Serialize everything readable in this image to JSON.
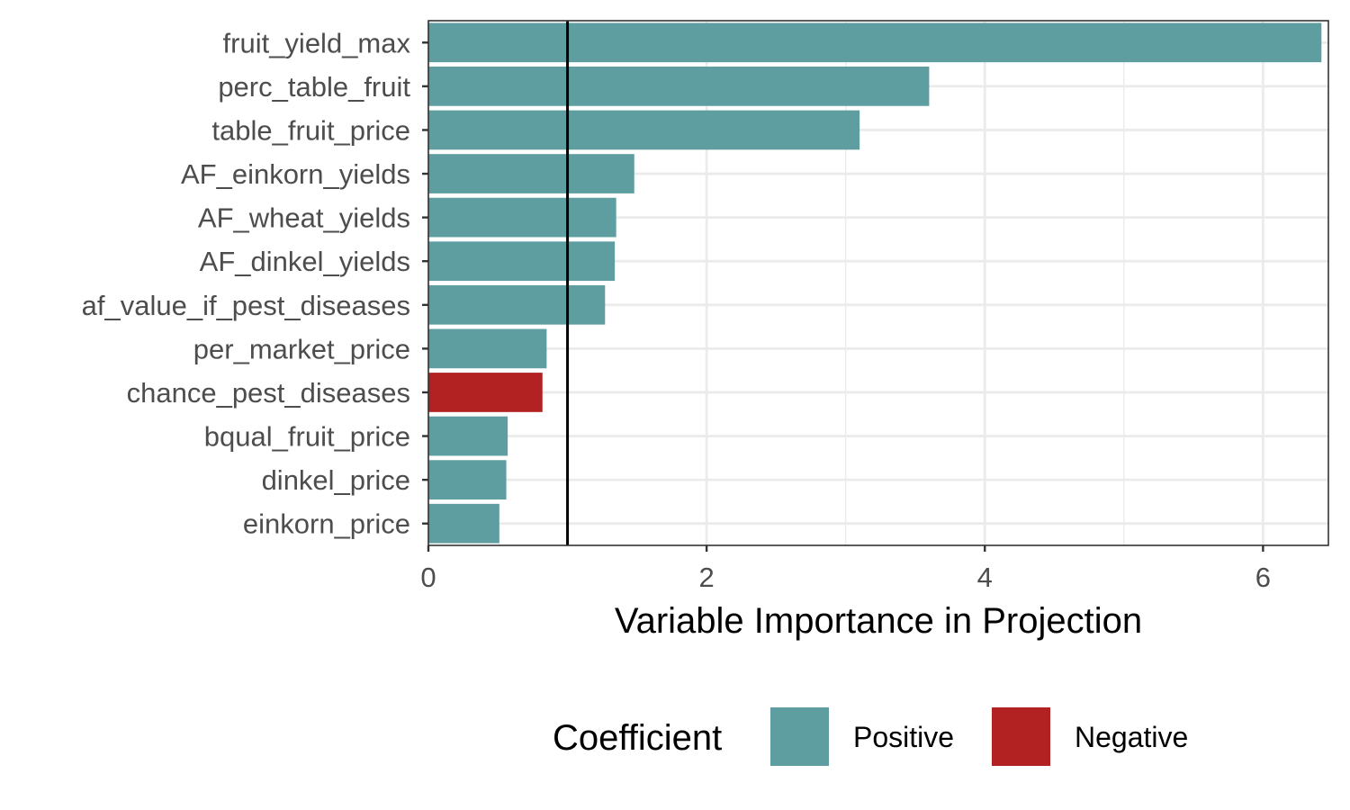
{
  "chart_data": {
    "type": "bar",
    "orientation": "horizontal",
    "categories": [
      "fruit_yield_max",
      "perc_table_fruit",
      "table_fruit_price",
      "AF_einkorn_yields",
      "AF_wheat_yields",
      "AF_dinkel_yields",
      "af_value_if_pest_diseases",
      "per_market_price",
      "chance_pest_diseases",
      "bqual_fruit_price",
      "dinkel_price",
      "einkorn_price"
    ],
    "values": [
      6.42,
      3.6,
      3.1,
      1.48,
      1.35,
      1.34,
      1.27,
      0.85,
      0.82,
      0.57,
      0.56,
      0.51
    ],
    "coefficient": [
      "Positive",
      "Positive",
      "Positive",
      "Positive",
      "Positive",
      "Positive",
      "Positive",
      "Positive",
      "Negative",
      "Positive",
      "Positive",
      "Positive"
    ],
    "reference_line": 1,
    "xlabel": "Variable Importance in Projection",
    "ylabel": "",
    "xlim": [
      0,
      6.47
    ],
    "x_ticks": [
      "0",
      "2",
      "4",
      "6"
    ],
    "x_tick_values": [
      0,
      2,
      4,
      6
    ],
    "grid": true,
    "legend": {
      "title": "Coefficient",
      "position": "bottom",
      "entries": [
        {
          "label": "Positive",
          "color": "#5f9ea0"
        },
        {
          "label": "Negative",
          "color": "#b22222"
        }
      ]
    },
    "colors": {
      "Positive": "#5f9ea0",
      "Negative": "#b22222",
      "grid": "#ebebeb",
      "reference_line": "#000000",
      "panel_border": "#333333"
    }
  }
}
